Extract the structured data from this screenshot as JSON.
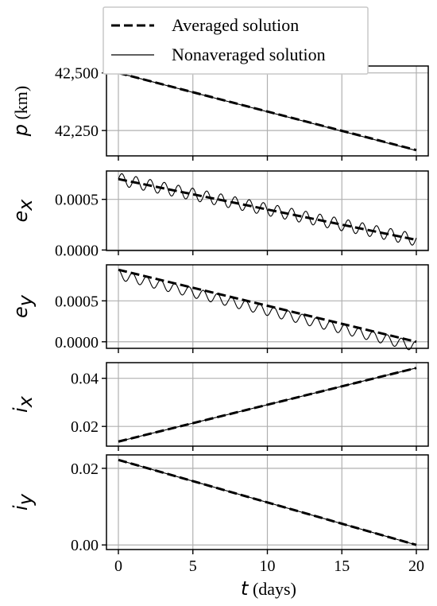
{
  "legend": {
    "averaged_label": "Averaged solution",
    "nonaveraged_label": "Nonaveraged solution"
  },
  "colors": {
    "line": "#000000",
    "grid": "#b0b0b0"
  },
  "chart_data": {
    "type": "line",
    "x_label_symbol": "t",
    "x_label_unit": " (days)",
    "xlim": [
      -0.8,
      20.8
    ],
    "x_ticks": [
      0,
      5,
      10,
      15,
      20
    ],
    "x_tick_labels": [
      "0",
      "5",
      "10",
      "15",
      "20"
    ],
    "grid": true,
    "legend_position": "top-center",
    "panels": [
      {
        "id": "p",
        "ylabel_symbol": "p",
        "ylabel_sub": "",
        "ylabel_unit": " (km)",
        "ylim": [
          42140,
          42530
        ],
        "y_ticks": [
          42250,
          42500
        ],
        "y_tick_labels": [
          "42,250",
          "42,500"
        ],
        "series": [
          {
            "name": "Averaged solution",
            "style": "dashed",
            "x": [
              0,
              20
            ],
            "y": [
              42500,
              42165
            ]
          },
          {
            "name": "Nonaveraged solution",
            "style": "solid",
            "x": [
              0,
              20
            ],
            "y": [
              42500,
              42163
            ]
          }
        ]
      },
      {
        "id": "ex",
        "ylabel_symbol": "e",
        "ylabel_sub": "x",
        "ylabel_unit": "",
        "ylim": [
          -5e-06,
          0.00078
        ],
        "y_ticks": [
          0,
          0.0005
        ],
        "y_tick_labels": [
          "0.0000",
          "0.0005"
        ],
        "series": [
          {
            "name": "Averaged solution",
            "style": "dashed",
            "x": [
              0,
              20
            ],
            "y": [
              0.0007,
              0.0001
            ]
          },
          {
            "name": "Nonaveraged solution",
            "style": "solid",
            "x": [
              0,
              20
            ],
            "y": [
              0.0007,
              0.0001
            ],
            "oscillation": {
              "amplitude": 6e-05,
              "period_days": 0.95,
              "phase": 0.0
            }
          }
        ]
      },
      {
        "id": "ey",
        "ylabel_symbol": "e",
        "ylabel_sub": "y",
        "ylabel_unit": "",
        "ylim": [
          -8e-05,
          0.00094
        ],
        "y_ticks": [
          0,
          0.0005
        ],
        "y_tick_labels": [
          "0.0000",
          "0.0005"
        ],
        "series": [
          {
            "name": "Averaged solution",
            "style": "dashed",
            "x": [
              0,
              20
            ],
            "y": [
              0.00088,
              0.0
            ]
          },
          {
            "name": "Nonaveraged solution",
            "style": "solid",
            "x": [
              0,
              20
            ],
            "y": [
              0.00088,
              0.0
            ],
            "oscillation": {
              "amplitude": 6e-05,
              "period_days": 0.95,
              "phase": 1.5708,
              "offset": -6e-05
            }
          }
        ]
      },
      {
        "id": "ix",
        "ylabel_symbol": "i",
        "ylabel_sub": "x",
        "ylabel_unit": "",
        "ylim": [
          0.0118,
          0.0465
        ],
        "y_ticks": [
          0.02,
          0.04
        ],
        "y_tick_labels": [
          "0.02",
          "0.04"
        ],
        "series": [
          {
            "name": "Averaged solution",
            "style": "dashed",
            "x": [
              0,
              20
            ],
            "y": [
              0.0137,
              0.0443
            ]
          },
          {
            "name": "Nonaveraged solution",
            "style": "solid",
            "x": [
              0,
              20
            ],
            "y": [
              0.0137,
              0.0443
            ]
          }
        ]
      },
      {
        "id": "iy",
        "ylabel_symbol": "i",
        "ylabel_sub": "y",
        "ylabel_unit": "",
        "ylim": [
          -0.0012,
          0.0235
        ],
        "y_ticks": [
          0.0,
          0.02
        ],
        "y_tick_labels": [
          "0.00",
          "0.02"
        ],
        "series": [
          {
            "name": "Averaged solution",
            "style": "dashed",
            "x": [
              0,
              20
            ],
            "y": [
              0.0222,
              0.0
            ]
          },
          {
            "name": "Nonaveraged solution",
            "style": "solid",
            "x": [
              0,
              20
            ],
            "y": [
              0.0222,
              0.0
            ]
          }
        ]
      }
    ]
  }
}
